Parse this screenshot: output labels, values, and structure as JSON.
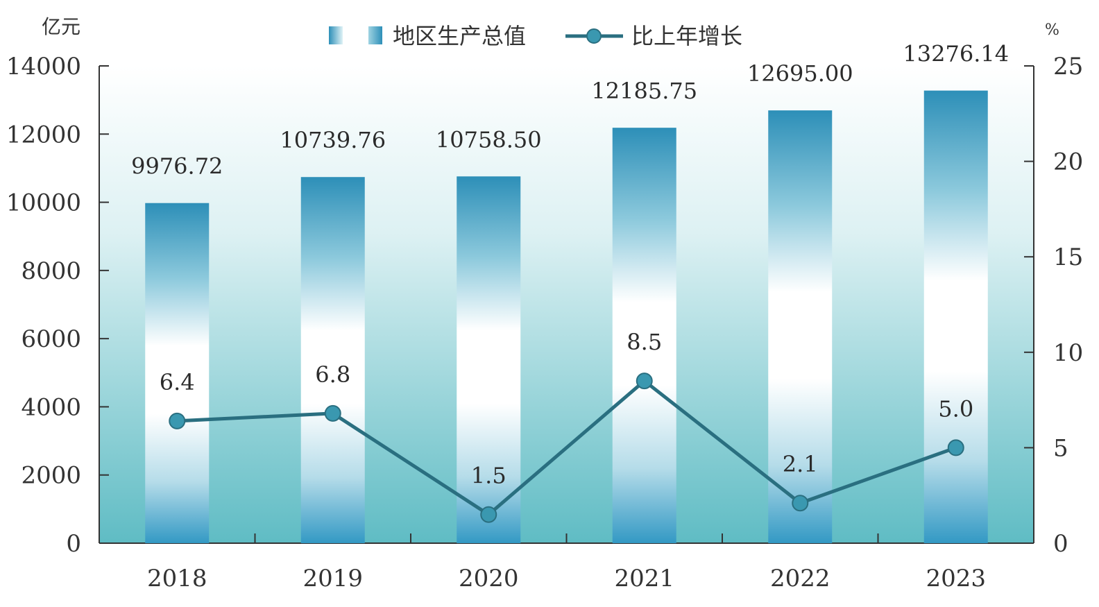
{
  "chart_data": {
    "type": "bar",
    "categories": [
      "2018",
      "2019",
      "2020",
      "2021",
      "2022",
      "2023"
    ],
    "series": [
      {
        "name": "地区生产总值",
        "type": "bar",
        "axis": "left",
        "values": [
          9976.72,
          10739.76,
          10758.5,
          12185.75,
          12695.0,
          13276.14
        ],
        "labels": [
          "9976.72",
          "10739.76",
          "10758.50",
          "12185.75",
          "12695.00",
          "13276.14"
        ]
      },
      {
        "name": "比上年增长",
        "type": "line",
        "axis": "right",
        "values": [
          6.4,
          6.8,
          1.5,
          8.5,
          2.1,
          5.0
        ],
        "labels": [
          "6.4",
          "6.8",
          "1.5",
          "8.5",
          "2.1",
          "5.0"
        ]
      }
    ],
    "left_axis": {
      "unit": "亿元",
      "ylim": [
        0,
        14000
      ],
      "ticks": [
        "0",
        "2000",
        "4000",
        "6000",
        "8000",
        "10000",
        "12000",
        "14000"
      ]
    },
    "right_axis": {
      "unit": "%",
      "ylim": [
        0,
        25
      ],
      "ticks": [
        "0",
        "5",
        "10",
        "15",
        "20",
        "25"
      ]
    },
    "legend": "top-center",
    "grid": false,
    "colors": {
      "bar_top": "#2d8fb8",
      "bar_mid": "#ffffff",
      "bar_bottom": "#3399c4",
      "background_top": "#ffffff",
      "background_bottom": "#5fbcc4",
      "line": "#2a6f80",
      "marker": "#3a98b0",
      "axis": "#333333"
    }
  }
}
